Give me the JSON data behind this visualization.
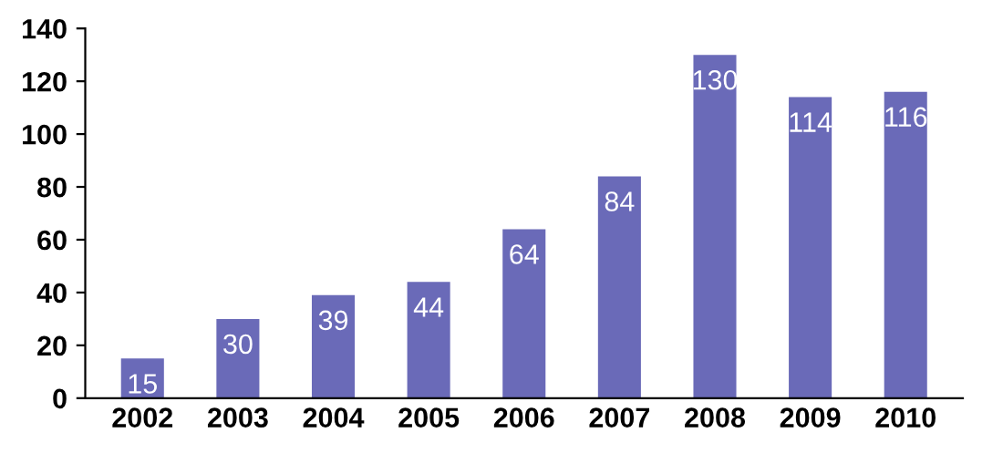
{
  "chart_data": {
    "type": "bar",
    "categories": [
      "2002",
      "2003",
      "2004",
      "2005",
      "2006",
      "2007",
      "2008",
      "2009",
      "2010"
    ],
    "values": [
      15,
      30,
      39,
      44,
      64,
      84,
      130,
      114,
      116
    ],
    "color": "#6a6ab8",
    "ylim": [
      0,
      140
    ],
    "yticks": [
      0,
      20,
      40,
      60,
      80,
      100,
      120,
      140
    ],
    "data_labels": true,
    "grid": false,
    "legend": false
  }
}
